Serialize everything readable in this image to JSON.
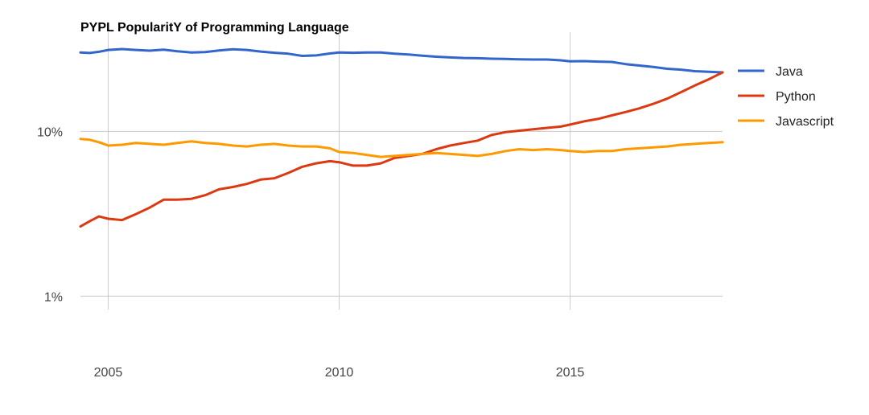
{
  "chart_data": {
    "type": "line",
    "title": "PYPL PopularitY of Programming Language",
    "xlabel": "",
    "ylabel": "",
    "y_scale": "log",
    "ylim": [
      0.5,
      40
    ],
    "xlim": [
      2004.4,
      2018.3
    ],
    "grid": true,
    "legend_position": "right",
    "x_ticks": [
      {
        "value": 2005,
        "label": "2005"
      },
      {
        "value": 2010,
        "label": "2010"
      },
      {
        "value": 2015,
        "label": "2015"
      }
    ],
    "y_ticks": [
      {
        "value": 10,
        "label": "10%"
      },
      {
        "value": 1,
        "label": "1%"
      }
    ],
    "series": [
      {
        "name": "Java",
        "color": "#3366cc",
        "x": [
          2004.4,
          2004.6,
          2004.8,
          2005.0,
          2005.3,
          2005.6,
          2005.9,
          2006.2,
          2006.5,
          2006.8,
          2007.1,
          2007.4,
          2007.7,
          2008.0,
          2008.3,
          2008.6,
          2008.9,
          2009.2,
          2009.5,
          2009.8,
          2010.0,
          2010.3,
          2010.6,
          2010.9,
          2011.2,
          2011.5,
          2011.8,
          2012.1,
          2012.4,
          2012.7,
          2013.0,
          2013.3,
          2013.6,
          2013.9,
          2014.2,
          2014.5,
          2014.8,
          2015.0,
          2015.3,
          2015.6,
          2015.9,
          2016.2,
          2016.5,
          2016.8,
          2017.1,
          2017.4,
          2017.7,
          2018.0,
          2018.3
        ],
        "y": [
          30.1,
          29.9,
          30.4,
          31.2,
          31.6,
          31.2,
          30.9,
          31.3,
          30.6,
          30.1,
          30.3,
          31.0,
          31.5,
          31.2,
          30.5,
          30.0,
          29.6,
          28.7,
          28.9,
          29.7,
          30.1,
          30.0,
          30.1,
          30.1,
          29.6,
          29.3,
          28.8,
          28.4,
          28.1,
          27.9,
          27.8,
          27.6,
          27.5,
          27.4,
          27.3,
          27.3,
          27.0,
          26.6,
          26.7,
          26.5,
          26.4,
          25.6,
          25.1,
          24.6,
          24.0,
          23.7,
          23.2,
          23.0,
          22.8
        ]
      },
      {
        "name": "Python",
        "color": "#dc3912",
        "x": [
          2004.4,
          2004.6,
          2004.8,
          2005.0,
          2005.3,
          2005.6,
          2005.9,
          2006.2,
          2006.5,
          2006.8,
          2007.1,
          2007.4,
          2007.7,
          2008.0,
          2008.3,
          2008.6,
          2008.9,
          2009.2,
          2009.5,
          2009.8,
          2010.0,
          2010.3,
          2010.6,
          2010.9,
          2011.2,
          2011.5,
          2011.8,
          2012.1,
          2012.4,
          2012.7,
          2013.0,
          2013.3,
          2013.6,
          2013.9,
          2014.2,
          2014.5,
          2014.8,
          2015.0,
          2015.3,
          2015.6,
          2015.9,
          2016.2,
          2016.5,
          2016.8,
          2017.1,
          2017.4,
          2017.7,
          2018.0,
          2018.3
        ],
        "y": [
          2.65,
          2.85,
          3.05,
          2.95,
          2.9,
          3.15,
          3.45,
          3.85,
          3.85,
          3.9,
          4.1,
          4.45,
          4.6,
          4.8,
          5.1,
          5.2,
          5.6,
          6.1,
          6.4,
          6.6,
          6.5,
          6.2,
          6.2,
          6.4,
          6.9,
          7.1,
          7.3,
          7.8,
          8.2,
          8.5,
          8.8,
          9.5,
          9.9,
          10.1,
          10.3,
          10.5,
          10.7,
          11.0,
          11.5,
          11.9,
          12.5,
          13.1,
          13.8,
          14.7,
          15.8,
          17.3,
          19.0,
          20.7,
          22.8
        ]
      },
      {
        "name": "Javascript",
        "color": "#ff9900",
        "x": [
          2004.4,
          2004.6,
          2004.8,
          2005.0,
          2005.3,
          2005.6,
          2005.9,
          2006.2,
          2006.5,
          2006.8,
          2007.1,
          2007.4,
          2007.7,
          2008.0,
          2008.3,
          2008.6,
          2008.9,
          2009.2,
          2009.5,
          2009.8,
          2010.0,
          2010.3,
          2010.6,
          2010.9,
          2011.2,
          2011.5,
          2011.8,
          2012.1,
          2012.4,
          2012.7,
          2013.0,
          2013.3,
          2013.6,
          2013.9,
          2014.2,
          2014.5,
          2014.8,
          2015.0,
          2015.3,
          2015.6,
          2015.9,
          2016.2,
          2016.5,
          2016.8,
          2017.1,
          2017.4,
          2017.7,
          2018.0,
          2018.3
        ],
        "y": [
          9.0,
          8.9,
          8.6,
          8.2,
          8.3,
          8.5,
          8.4,
          8.3,
          8.5,
          8.7,
          8.5,
          8.4,
          8.2,
          8.1,
          8.3,
          8.4,
          8.2,
          8.1,
          8.1,
          7.9,
          7.5,
          7.4,
          7.2,
          7.0,
          7.1,
          7.2,
          7.3,
          7.4,
          7.3,
          7.2,
          7.1,
          7.3,
          7.6,
          7.8,
          7.7,
          7.8,
          7.7,
          7.6,
          7.5,
          7.6,
          7.6,
          7.8,
          7.9,
          8.0,
          8.1,
          8.3,
          8.4,
          8.5,
          8.6
        ]
      }
    ]
  }
}
